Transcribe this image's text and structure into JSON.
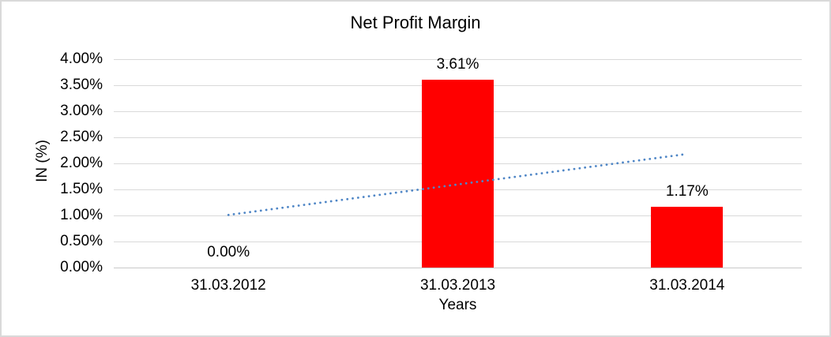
{
  "chart_data": {
    "type": "bar",
    "title": "Net Profit Margin",
    "xlabel": "Years",
    "ylabel": "IN (%)",
    "categories": [
      "31.03.2012",
      "31.03.2013",
      "31.03.2014"
    ],
    "values": [
      0,
      3.61,
      1.17
    ],
    "data_labels": [
      "0.00%",
      "3.61%",
      "1.17%"
    ],
    "ylim": [
      0,
      4
    ],
    "ytick_step": 0.5,
    "ytick_labels": [
      "0.00%",
      "0.50%",
      "1.00%",
      "1.50%",
      "2.00%",
      "2.50%",
      "3.00%",
      "3.50%",
      "4.00%"
    ],
    "grid": true,
    "legend": "none",
    "bar_color": "#ff0000",
    "grid_color": "#d9d9d9",
    "text_color": "#000000",
    "trendline": {
      "type": "linear",
      "style": "dotted",
      "color": "#4f86c6",
      "start_value": 1.01,
      "end_value": 2.18
    }
  }
}
